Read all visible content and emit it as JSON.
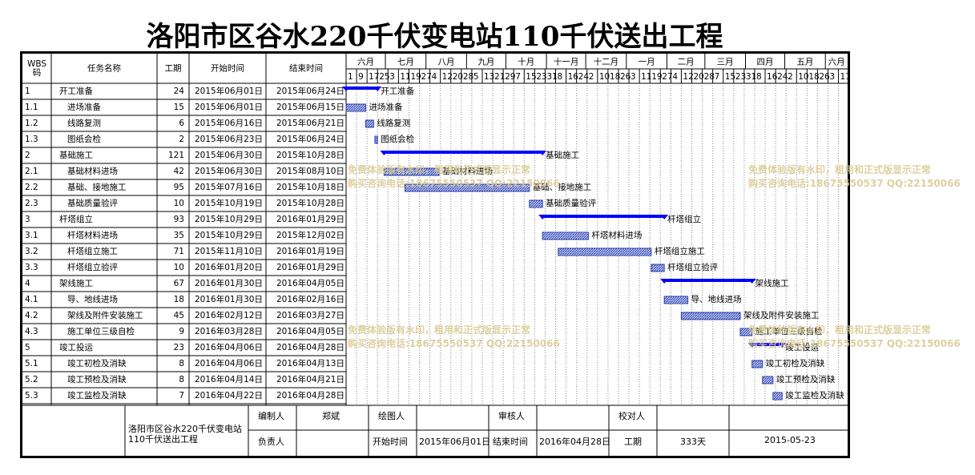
{
  "title": "洛阳市区谷水220千伏变电站110千伏送出工程",
  "columns": {
    "wbs": "WBS\n码",
    "name": "任务名称",
    "duration": "工期",
    "start": "开始时间",
    "end": "结束时间"
  },
  "months": [
    "六月",
    "七月",
    "八月",
    "九月",
    "十月",
    "十一月",
    "十二月",
    "一月",
    "二月",
    "三月",
    "四月",
    "五月",
    "六月"
  ],
  "day_ticks": [
    "1",
    "9",
    "17",
    "25",
    "3",
    "11",
    "19",
    "27",
    "4",
    "12",
    "20",
    "28",
    "5",
    "13",
    "21",
    "29",
    "7",
    "15",
    "23",
    "31",
    "8",
    "16",
    "24",
    "2",
    "10",
    "18",
    "26",
    "3",
    "11",
    "19",
    "27",
    "4",
    "12",
    "20",
    "28",
    "7",
    "15",
    "23",
    "31",
    "8",
    "16",
    "24",
    "2",
    "10",
    "18",
    "26",
    "3",
    "11"
  ],
  "timeline": {
    "start": "2015-06-01",
    "end": "2016-06-18"
  },
  "tasks": [
    {
      "wbs": "1",
      "name": "开工准备",
      "duration": "24",
      "start": "2015年06月01日",
      "end": "2015年06月24日",
      "summary": true,
      "level": 0,
      "bar_start": "2015-06-01",
      "bar_end": "2015-06-24"
    },
    {
      "wbs": "1.1",
      "name": "进场准备",
      "duration": "15",
      "start": "2015年06月01日",
      "end": "2015年06月15日",
      "summary": false,
      "level": 1,
      "bar_start": "2015-06-01",
      "bar_end": "2015-06-15"
    },
    {
      "wbs": "1.2",
      "name": "线路复测",
      "duration": "6",
      "start": "2015年06月16日",
      "end": "2015年06月21日",
      "summary": false,
      "level": 1,
      "bar_start": "2015-06-16",
      "bar_end": "2015-06-21"
    },
    {
      "wbs": "1.3",
      "name": "图纸会检",
      "duration": "2",
      "start": "2015年06月23日",
      "end": "2015年06月24日",
      "summary": false,
      "level": 1,
      "bar_start": "2015-06-23",
      "bar_end": "2015-06-24"
    },
    {
      "wbs": "2",
      "name": "基础施工",
      "duration": "121",
      "start": "2015年06月30日",
      "end": "2015年10月28日",
      "summary": true,
      "level": 0,
      "bar_start": "2015-06-30",
      "bar_end": "2015-10-28"
    },
    {
      "wbs": "2.1",
      "name": "基础材料进场",
      "duration": "42",
      "start": "2015年06月30日",
      "end": "2015年08月10日",
      "summary": false,
      "level": 1,
      "bar_start": "2015-06-30",
      "bar_end": "2015-08-10"
    },
    {
      "wbs": "2.2",
      "name": "基础、接地施工",
      "duration": "95",
      "start": "2015年07月16日",
      "end": "2015年10月18日",
      "summary": false,
      "level": 1,
      "bar_start": "2015-07-16",
      "bar_end": "2015-10-18"
    },
    {
      "wbs": "2.3",
      "name": "基础质量验评",
      "duration": "10",
      "start": "2015年10月19日",
      "end": "2015年10月28日",
      "summary": false,
      "level": 1,
      "bar_start": "2015-10-19",
      "bar_end": "2015-10-28"
    },
    {
      "wbs": "3",
      "name": "杆塔组立",
      "duration": "93",
      "start": "2015年10月29日",
      "end": "2016年01月29日",
      "summary": true,
      "level": 0,
      "bar_start": "2015-10-29",
      "bar_end": "2016-01-29"
    },
    {
      "wbs": "3.1",
      "name": "杆塔材料进场",
      "duration": "35",
      "start": "2015年10月29日",
      "end": "2015年12月02日",
      "summary": false,
      "level": 1,
      "bar_start": "2015-10-29",
      "bar_end": "2015-12-02"
    },
    {
      "wbs": "3.2",
      "name": "杆塔组立施工",
      "duration": "71",
      "start": "2015年11月10日",
      "end": "2016年01月19日",
      "summary": false,
      "level": 1,
      "bar_start": "2015-11-10",
      "bar_end": "2016-01-19"
    },
    {
      "wbs": "3.3",
      "name": "杆塔组立验评",
      "duration": "10",
      "start": "2016年01月20日",
      "end": "2016年01月29日",
      "summary": false,
      "level": 1,
      "bar_start": "2016-01-20",
      "bar_end": "2016-01-29"
    },
    {
      "wbs": "4",
      "name": "架线施工",
      "duration": "67",
      "start": "2016年01月30日",
      "end": "2016年04月05日",
      "summary": true,
      "level": 0,
      "bar_start": "2016-01-30",
      "bar_end": "2016-04-05"
    },
    {
      "wbs": "4.1",
      "name": "导、地线进场",
      "duration": "18",
      "start": "2016年01月30日",
      "end": "2016年02月16日",
      "summary": false,
      "level": 1,
      "bar_start": "2016-01-30",
      "bar_end": "2016-02-16"
    },
    {
      "wbs": "4.2",
      "name": "架线及附件安装施工",
      "duration": "45",
      "start": "2016年02月12日",
      "end": "2016年03月27日",
      "summary": false,
      "level": 1,
      "bar_start": "2016-02-12",
      "bar_end": "2016-03-27"
    },
    {
      "wbs": "4.3",
      "name": "施工单位三级自检",
      "duration": "9",
      "start": "2016年03月28日",
      "end": "2016年04月05日",
      "summary": false,
      "level": 1,
      "bar_start": "2016-03-28",
      "bar_end": "2016-04-05"
    },
    {
      "wbs": "5",
      "name": "竣工投运",
      "duration": "23",
      "start": "2016年04月06日",
      "end": "2016年04月28日",
      "summary": true,
      "level": 0,
      "bar_start": "2016-04-06",
      "bar_end": "2016-04-28"
    },
    {
      "wbs": "5.1",
      "name": "竣工初检及消缺",
      "duration": "8",
      "start": "2016年04月06日",
      "end": "2016年04月13日",
      "summary": false,
      "level": 1,
      "bar_start": "2016-04-06",
      "bar_end": "2016-04-13"
    },
    {
      "wbs": "5.2",
      "name": "竣工预检及消缺",
      "duration": "8",
      "start": "2016年04月14日",
      "end": "2016年04月21日",
      "summary": false,
      "level": 1,
      "bar_start": "2016-04-14",
      "bar_end": "2016-04-21"
    },
    {
      "wbs": "5.3",
      "name": "竣工监检及消缺",
      "duration": "7",
      "start": "2016年04月22日",
      "end": "2016年04月28日",
      "summary": false,
      "level": 1,
      "critical": true,
      "bar_start": "2016-04-22",
      "bar_end": "2016-04-28"
    }
  ],
  "footer": {
    "project_name": "洛阳市区谷水220千伏变电站110千伏送出工程",
    "editor_label": "编制人",
    "editor": "郑斌",
    "drafter_label": "绘图人",
    "drafter": "",
    "reviewer_label": "审核人",
    "reviewer": "",
    "proofreader_label": "校对人",
    "proofreader": "",
    "owner_label": "负责人",
    "owner": "",
    "start_label": "开始时间",
    "start": "2015年06月01日",
    "end_label": "结束时间",
    "end": "2016年04月28日",
    "duration_label": "工期",
    "duration": "333天",
    "date": "2015-05-23"
  },
  "watermark": {
    "line1": "免费体验版有水印，租用和正式版显示正常",
    "line2": "购买咨询电话:18675550537 QQ:22150066"
  },
  "colors": {
    "summary_bar": "#0000ff",
    "task_bar": "#2a3fb0",
    "critical_text": "#ff0000",
    "watermark": "#d8c890"
  }
}
